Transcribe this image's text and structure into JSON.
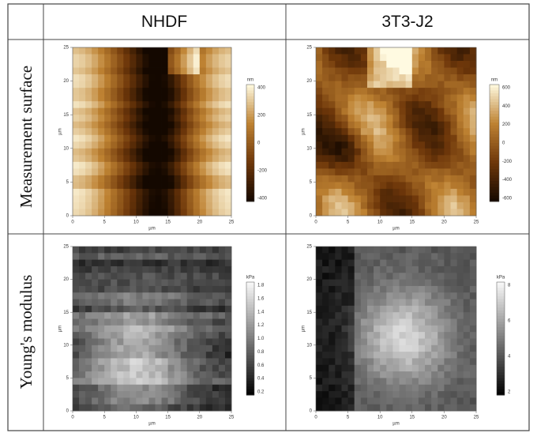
{
  "header": {
    "columns": [
      "NHDF",
      "3T3-J2"
    ]
  },
  "rows": [
    {
      "label": "Measurement surface"
    },
    {
      "label": "Young's modulus"
    }
  ],
  "panels": [
    {
      "x_ticks": [
        "0",
        "5",
        "10",
        "15",
        "20",
        "25"
      ],
      "y_ticks": [
        "0",
        "5",
        "10",
        "15",
        "20",
        "25"
      ],
      "x_label": "µm",
      "y_label": "µm",
      "colorbar_label": "nm",
      "colorbar_ticks": [
        "400",
        "200",
        "0",
        "-200",
        "-400"
      ]
    },
    {
      "x_ticks": [
        "0",
        "5",
        "10",
        "15",
        "20",
        "25"
      ],
      "y_ticks": [
        "0",
        "5",
        "10",
        "15",
        "20",
        "25"
      ],
      "x_label": "µm",
      "y_label": "µm",
      "colorbar_label": "nm",
      "colorbar_ticks": [
        "600",
        "400",
        "200",
        "0",
        "-200",
        "-400",
        "-600"
      ]
    },
    {
      "x_ticks": [
        "0",
        "5",
        "10",
        "15",
        "20",
        "25"
      ],
      "y_ticks": [
        "0",
        "5",
        "10",
        "15",
        "20",
        "25"
      ],
      "x_label": "µm",
      "y_label": "µm",
      "colorbar_label": "kPa",
      "colorbar_ticks": [
        "1.8",
        "1.6",
        "1.4",
        "1.2",
        "1.0",
        "0.8",
        "0.6",
        "0.4",
        "0.2"
      ]
    },
    {
      "x_ticks": [
        "0",
        "5",
        "10",
        "15",
        "20",
        "25"
      ],
      "y_ticks": [
        "0",
        "5",
        "10",
        "15",
        "20",
        "25"
      ],
      "x_label": "µm",
      "y_label": "µm",
      "colorbar_label": "kPa",
      "colorbar_ticks": [
        "8",
        "6",
        "4",
        "2"
      ]
    }
  ]
}
